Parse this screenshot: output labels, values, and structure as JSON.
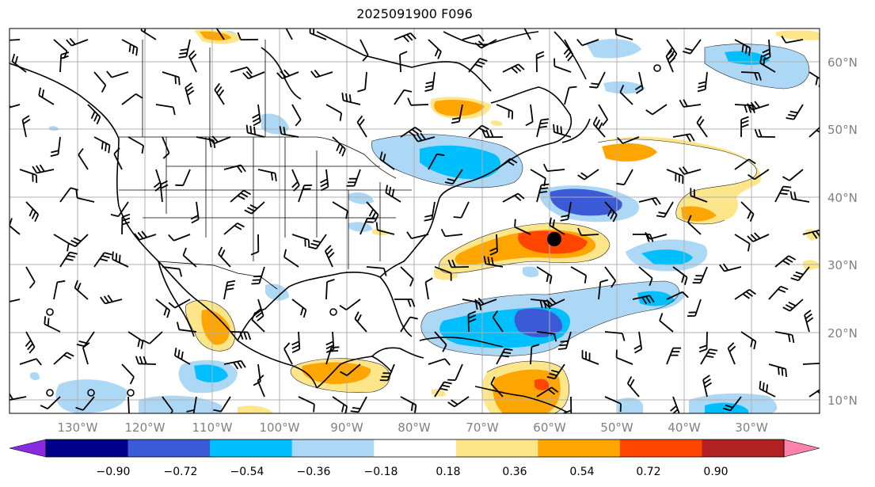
{
  "title": "2025091900 F096",
  "map": {
    "lat_labels": [
      "60°N",
      "50°N",
      "40°N",
      "30°N",
      "20°N",
      "10°N"
    ],
    "lon_labels": [
      "130°W",
      "120°W",
      "110°W",
      "100°W",
      "90°W",
      "80°W",
      "70°W",
      "60°W",
      "50°W",
      "40°W",
      "30°W"
    ],
    "label_color": "#808080",
    "marker": "black filled circle",
    "barbs": "wind-barb-icon field"
  },
  "colorbar": {
    "colors": [
      "#8a2be2",
      "#00008b",
      "#3b5bd6",
      "#00bfff",
      "#add8f5",
      "#ffffff",
      "#fde68a",
      "#ffa500",
      "#ff4500",
      "#b22222",
      "#ff82ab"
    ],
    "tick_labels": [
      "−0.90",
      "−0.72",
      "−0.54",
      "−0.36",
      "−0.18",
      "0.18",
      "0.36",
      "0.54",
      "0.72",
      "0.90"
    ]
  }
}
